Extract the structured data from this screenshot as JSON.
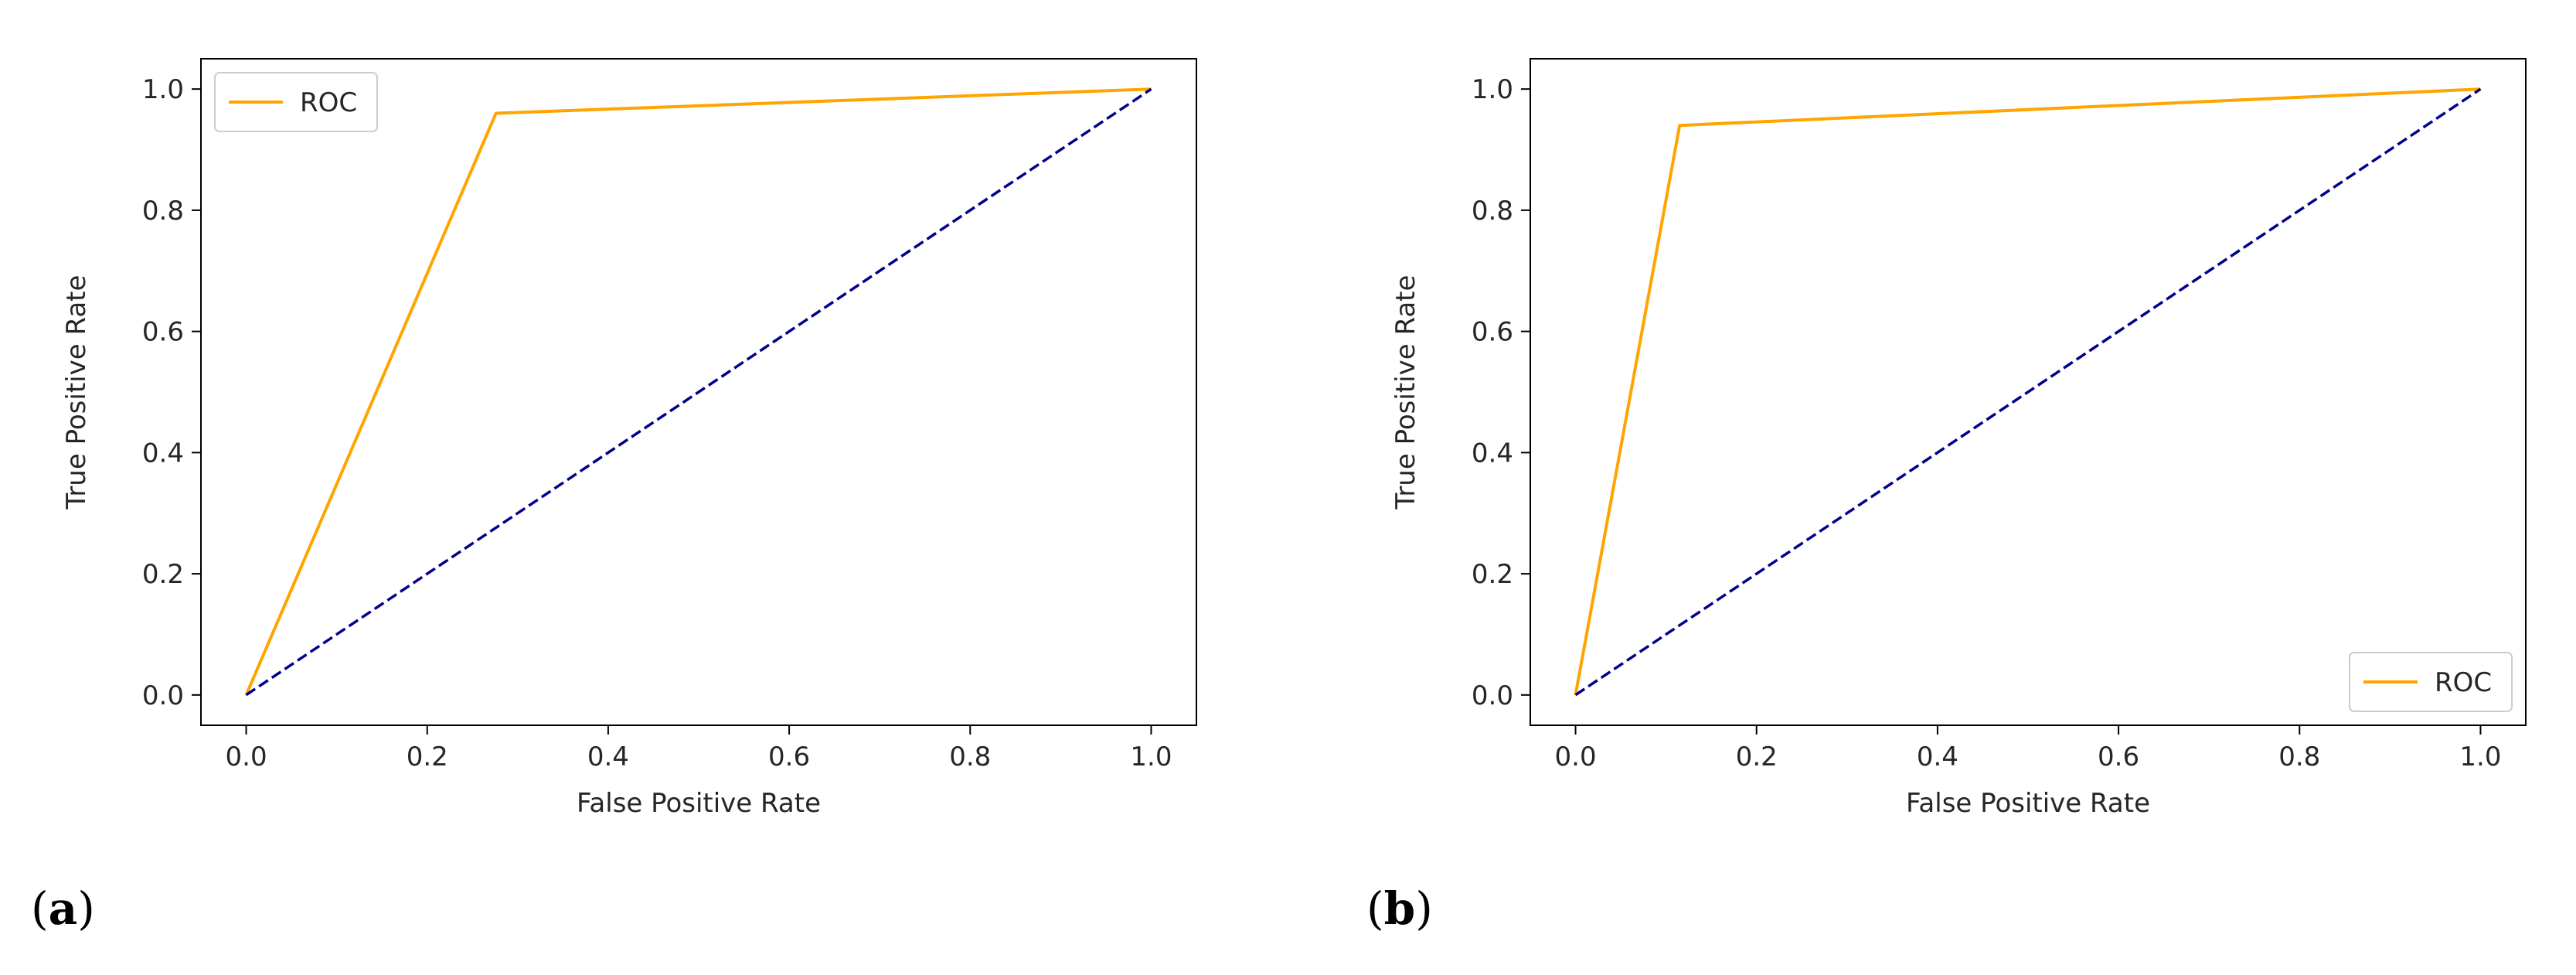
{
  "colors": {
    "roc": "#FFA500",
    "baseline": "#00008B",
    "axis": "#000000",
    "text": "#262626"
  },
  "chart_data": [
    {
      "type": "line",
      "panel_label": "a",
      "xlabel": "False Positive Rate",
      "ylabel": "True Positive Rate",
      "xlim": [
        -0.05,
        1.05
      ],
      "ylim": [
        -0.05,
        1.05
      ],
      "xticks": [
        0.0,
        0.2,
        0.4,
        0.6,
        0.8,
        1.0
      ],
      "yticks": [
        0.0,
        0.2,
        0.4,
        0.6,
        0.8,
        1.0
      ],
      "tick_labels": [
        "0.0",
        "0.2",
        "0.4",
        "0.6",
        "0.8",
        "1.0"
      ],
      "legend_position": "upper-left",
      "series": [
        {
          "name": "ROC",
          "style": "solid",
          "color": "#FFA500",
          "x": [
            0.0,
            0.276,
            1.0
          ],
          "y": [
            0.0,
            0.96,
            1.0
          ]
        },
        {
          "name": "",
          "style": "dashed",
          "color": "#00008B",
          "x": [
            0.0,
            1.0
          ],
          "y": [
            0.0,
            1.0
          ]
        }
      ]
    },
    {
      "type": "line",
      "panel_label": "b",
      "xlabel": "False Positive Rate",
      "ylabel": "True Positive Rate",
      "xlim": [
        -0.05,
        1.05
      ],
      "ylim": [
        -0.05,
        1.05
      ],
      "xticks": [
        0.0,
        0.2,
        0.4,
        0.6,
        0.8,
        1.0
      ],
      "yticks": [
        0.0,
        0.2,
        0.4,
        0.6,
        0.8,
        1.0
      ],
      "tick_labels": [
        "0.0",
        "0.2",
        "0.4",
        "0.6",
        "0.8",
        "1.0"
      ],
      "legend_position": "lower-right",
      "series": [
        {
          "name": "ROC",
          "style": "solid",
          "color": "#FFA500",
          "x": [
            0.0,
            0.115,
            1.0
          ],
          "y": [
            0.0,
            0.94,
            1.0
          ]
        },
        {
          "name": "",
          "style": "dashed",
          "color": "#00008B",
          "x": [
            0.0,
            1.0
          ],
          "y": [
            0.0,
            1.0
          ]
        }
      ]
    }
  ]
}
